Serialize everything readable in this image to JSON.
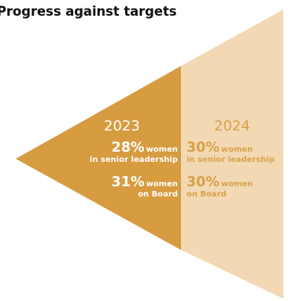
{
  "title": "Progress against targets",
  "colors": {
    "dark_gold": "#d79b40",
    "light_tan": "#f2d9b3",
    "tan_text": "#d9a14a"
  },
  "columns": [
    {
      "year": "2023",
      "stats": [
        {
          "value": "28%",
          "word": "women",
          "detail": "in senior leadership"
        },
        {
          "value": "31%",
          "word": "women",
          "detail": "on Board"
        }
      ]
    },
    {
      "year": "2024",
      "stats": [
        {
          "value": "30%",
          "word": "women",
          "detail": "in senior leadership"
        },
        {
          "value": "30%",
          "word": "women",
          "detail": "on Board"
        }
      ]
    }
  ]
}
